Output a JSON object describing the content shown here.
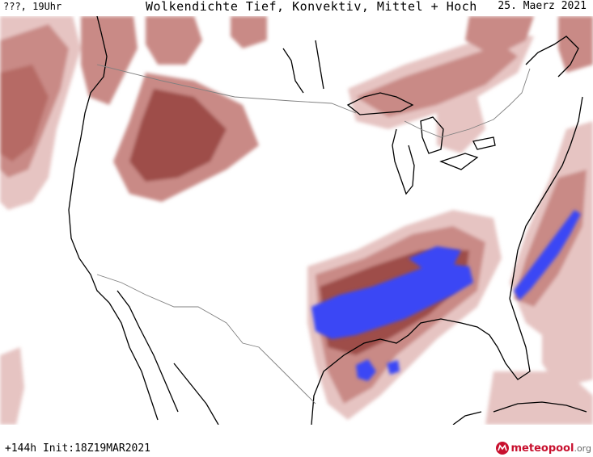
{
  "header": {
    "location_time": "???, 19Uhr",
    "title": "Wolkendichte  Tief, Konvektiv, Mittel + Hoch",
    "date": "25. Maerz 2021"
  },
  "footer": {
    "run_info": "+144h  Init:18Z19MAR2021"
  },
  "brand": {
    "name_main": "meteopool",
    "name_tld": ".org",
    "logo_icon": "meteopool-logo-icon"
  },
  "colors": {
    "cloud_light": "#e6c4c2",
    "cloud_mid": "#c98a86",
    "cloud_dense": "#9e4e49",
    "cloud_very_dense": "#7e2f2b",
    "convective": "#3b46f5",
    "coastline": "#000000",
    "border": "#808080"
  }
}
